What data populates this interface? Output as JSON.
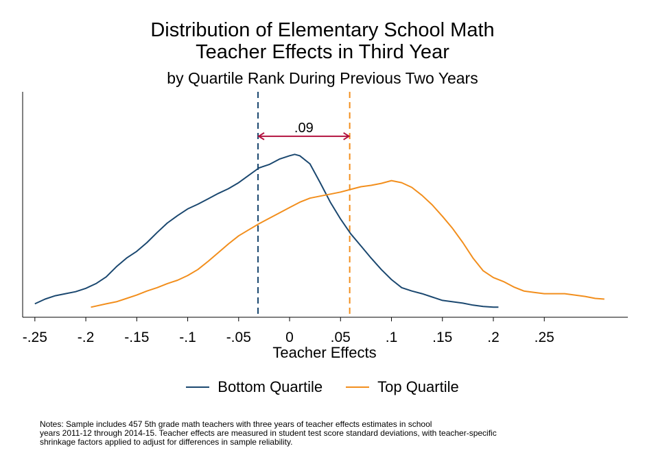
{
  "title_line1": "Distribution of Elementary School Math",
  "title_line2": "Teacher Effects in Third Year",
  "subtitle": "by Quartile Rank During Previous Two Years",
  "xlabel": "Teacher Effects",
  "annotation": ".09",
  "legend": {
    "bottom_label": "Bottom Quartile",
    "top_label": "Top Quartile"
  },
  "notes": [
    "Notes: Sample includes 457 5th grade math teachers with three years of teacher effects estimates in school",
    "years 2011-12 through 2014-15. Teacher effects are measured in student test score standard deviations, with teacher-specific",
    "shrinkage factors applied to adjust for differences in sample reliability."
  ],
  "colors": {
    "bottom": "#1a476f",
    "top": "#f28e1c",
    "arrow": "#b2123f",
    "axis": "#000000"
  },
  "chart_data": {
    "type": "line",
    "title": "Distribution of Elementary School Math Teacher Effects in Third Year",
    "subtitle": "by Quartile Rank During Previous Two Years",
    "xlabel": "Teacher Effects",
    "ylabel": "",
    "xlim": [
      -0.262,
      0.332
    ],
    "ylim": [
      0,
      3.35
    ],
    "x_ticks": [
      {
        "value": -0.25,
        "label": "-.25"
      },
      {
        "value": -0.2,
        "label": "-.2"
      },
      {
        "value": -0.15,
        "label": "-.15"
      },
      {
        "value": -0.1,
        "label": "-.1"
      },
      {
        "value": -0.05,
        "label": "-.05"
      },
      {
        "value": 0,
        "label": "0"
      },
      {
        "value": 0.05,
        "label": ".05"
      },
      {
        "value": 0.1,
        "label": ".1"
      },
      {
        "value": 0.15,
        "label": ".15"
      },
      {
        "value": 0.2,
        "label": ".2"
      },
      {
        "value": 0.25,
        "label": ".25"
      }
    ],
    "grid": false,
    "legend_position": "bottom",
    "series": [
      {
        "name": "Bottom Quartile",
        "x": [
          -0.25,
          -0.24,
          -0.23,
          -0.22,
          -0.21,
          -0.2,
          -0.19,
          -0.18,
          -0.17,
          -0.16,
          -0.15,
          -0.14,
          -0.13,
          -0.12,
          -0.11,
          -0.1,
          -0.09,
          -0.08,
          -0.07,
          -0.06,
          -0.05,
          -0.04,
          -0.03,
          -0.02,
          -0.01,
          0,
          0.005,
          0.01,
          0.02,
          0.03,
          0.04,
          0.05,
          0.06,
          0.07,
          0.08,
          0.09,
          0.1,
          0.11,
          0.12,
          0.13,
          0.14,
          0.15,
          0.16,
          0.17,
          0.18,
          0.19,
          0.2,
          0.205
        ],
        "y": [
          0.2,
          0.27,
          0.32,
          0.35,
          0.38,
          0.43,
          0.5,
          0.6,
          0.75,
          0.88,
          0.98,
          1.11,
          1.26,
          1.4,
          1.51,
          1.61,
          1.68,
          1.76,
          1.84,
          1.91,
          2.0,
          2.11,
          2.22,
          2.27,
          2.35,
          2.4,
          2.42,
          2.4,
          2.28,
          2.0,
          1.71,
          1.46,
          1.24,
          1.06,
          0.88,
          0.71,
          0.56,
          0.44,
          0.39,
          0.35,
          0.3,
          0.25,
          0.23,
          0.21,
          0.18,
          0.16,
          0.15,
          0.15
        ]
      },
      {
        "name": "Top Quartile",
        "x": [
          -0.195,
          -0.18,
          -0.17,
          -0.16,
          -0.15,
          -0.14,
          -0.13,
          -0.12,
          -0.11,
          -0.1,
          -0.09,
          -0.08,
          -0.07,
          -0.06,
          -0.05,
          -0.04,
          -0.03,
          -0.02,
          -0.01,
          0,
          0.01,
          0.02,
          0.03,
          0.04,
          0.05,
          0.06,
          0.07,
          0.08,
          0.09,
          0.1,
          0.11,
          0.12,
          0.13,
          0.14,
          0.15,
          0.16,
          0.17,
          0.18,
          0.19,
          0.2,
          0.21,
          0.22,
          0.23,
          0.24,
          0.25,
          0.26,
          0.27,
          0.28,
          0.29,
          0.3,
          0.309
        ],
        "y": [
          0.15,
          0.2,
          0.23,
          0.28,
          0.33,
          0.39,
          0.44,
          0.5,
          0.55,
          0.62,
          0.71,
          0.83,
          0.96,
          1.09,
          1.21,
          1.3,
          1.39,
          1.47,
          1.55,
          1.63,
          1.71,
          1.77,
          1.8,
          1.83,
          1.86,
          1.9,
          1.94,
          1.96,
          1.99,
          2.03,
          2.0,
          1.93,
          1.81,
          1.67,
          1.5,
          1.32,
          1.11,
          0.88,
          0.69,
          0.59,
          0.53,
          0.45,
          0.39,
          0.37,
          0.35,
          0.35,
          0.35,
          0.33,
          0.31,
          0.28,
          0.27
        ]
      }
    ],
    "reference_lines": [
      {
        "x": -0.031,
        "series": "Bottom Quartile"
      },
      {
        "x": 0.059,
        "series": "Top Quartile"
      }
    ],
    "annotations": [
      {
        "text": ".09",
        "x_from": -0.031,
        "x_to": 0.059,
        "y": 2.69
      }
    ]
  }
}
